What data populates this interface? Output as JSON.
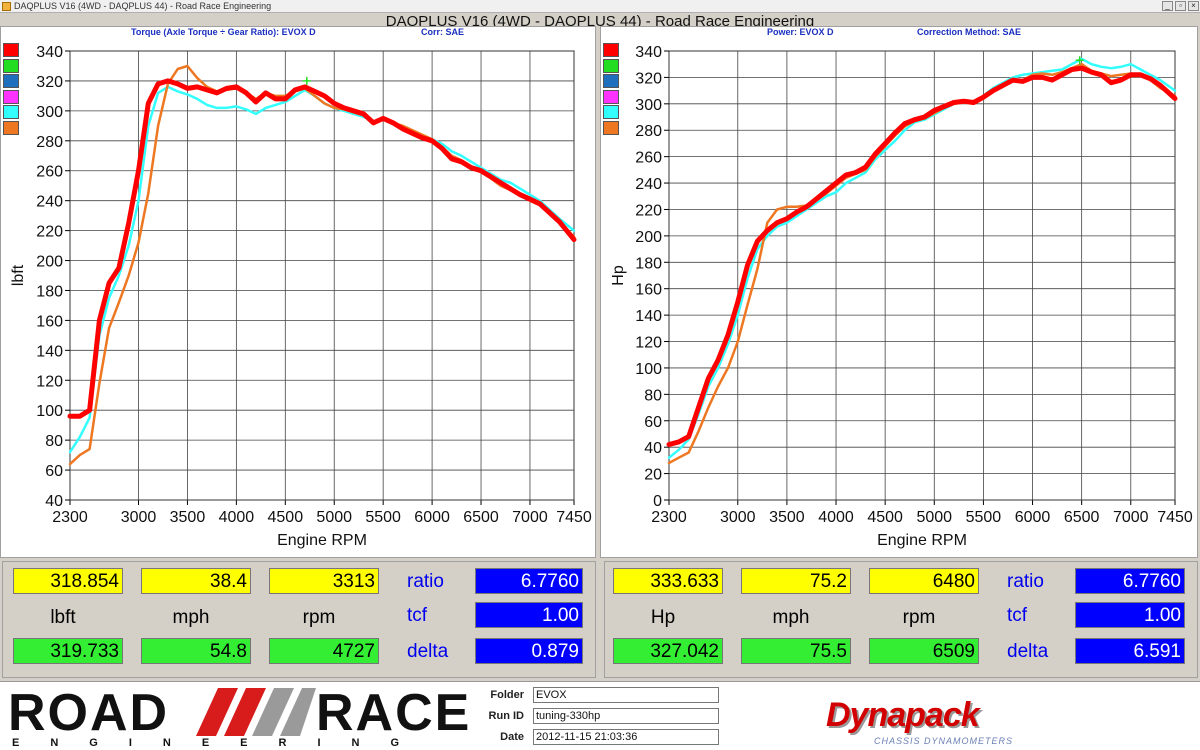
{
  "window": {
    "title": "DAQPLUS V16 (4WD - DAQPLUS 44) - Road Race Engineering",
    "main_title": "DAQPLUS V16 (4WD - DAQPLUS 44) - Road Race Engineering"
  },
  "left_panel": {
    "header": "Torque (Axle Torque ÷ Gear Ratio): EVOX D",
    "correction": "Corr: SAE"
  },
  "right_panel": {
    "header": "Power: EVOX D",
    "correction": "Correction Method: SAE"
  },
  "legend_colors": [
    "#ff0000",
    "#22dd22",
    "#1f6fbf",
    "#ff33ff",
    "#33ffff",
    "#ee7722"
  ],
  "chart_data": [
    {
      "type": "line",
      "title": "",
      "xlabel": "Engine RPM",
      "ylabel": "lbft",
      "xlim": [
        2300,
        7450
      ],
      "ylim": [
        40,
        340
      ],
      "x_ticks": [
        "2300",
        "3000",
        "3500",
        "4000",
        "4500",
        "5000",
        "5500",
        "6000",
        "6500",
        "7000",
        "7450"
      ],
      "y_ticks": [
        "40",
        "60",
        "80",
        "100",
        "120",
        "140",
        "160",
        "180",
        "200",
        "220",
        "240",
        "260",
        "280",
        "300",
        "320",
        "340"
      ],
      "grid": true,
      "series": [
        {
          "color": "#ff0000",
          "x": [
            2300,
            2400,
            2500,
            2600,
            2700,
            2800,
            2900,
            3000,
            3100,
            3200,
            3300,
            3400,
            3500,
            3600,
            3700,
            3800,
            3900,
            4000,
            4100,
            4200,
            4300,
            4400,
            4500,
            4600,
            4700,
            4800,
            4900,
            5000,
            5100,
            5200,
            5300,
            5400,
            5500,
            5600,
            5700,
            5800,
            5900,
            6000,
            6100,
            6200,
            6300,
            6400,
            6500,
            6600,
            6700,
            6800,
            6900,
            7000,
            7100,
            7200,
            7300,
            7450
          ],
          "y": [
            96,
            96,
            100,
            160,
            185,
            195,
            225,
            260,
            305,
            318,
            320,
            318,
            315,
            316,
            314,
            312,
            315,
            316,
            312,
            306,
            312,
            308,
            308,
            314,
            316,
            313,
            310,
            305,
            302,
            300,
            298,
            292,
            295,
            292,
            288,
            285,
            282,
            280,
            275,
            268,
            266,
            262,
            260,
            256,
            252,
            248,
            244,
            241,
            238,
            232,
            226,
            214
          ]
        },
        {
          "color": "#33ffff",
          "x": [
            2300,
            2400,
            2500,
            2600,
            2700,
            2800,
            2900,
            3000,
            3100,
            3200,
            3300,
            3400,
            3500,
            3600,
            3700,
            3800,
            3900,
            4000,
            4100,
            4200,
            4300,
            4400,
            4500,
            4600,
            4700,
            4800,
            4900,
            5000,
            5100,
            5200,
            5300,
            5400,
            5500,
            5600,
            5700,
            5800,
            5900,
            6000,
            6100,
            6200,
            6300,
            6400,
            6500,
            6600,
            6700,
            6800,
            6900,
            7000,
            7100,
            7200,
            7300,
            7450
          ],
          "y": [
            72,
            82,
            95,
            150,
            175,
            190,
            210,
            240,
            290,
            312,
            316,
            313,
            311,
            308,
            304,
            302,
            302,
            303,
            301,
            298,
            302,
            304,
            306,
            310,
            314,
            310,
            305,
            302,
            300,
            298,
            296,
            293,
            294,
            291,
            289,
            286,
            283,
            281,
            278,
            273,
            270,
            266,
            262,
            258,
            254,
            252,
            248,
            244,
            240,
            234,
            228,
            220
          ]
        },
        {
          "color": "#ee7722",
          "x": [
            2300,
            2400,
            2500,
            2600,
            2700,
            2800,
            2900,
            3000,
            3100,
            3200,
            3300,
            3400,
            3500,
            3600,
            3700,
            3800,
            3900,
            4000,
            4100,
            4200,
            4300,
            4400,
            4500,
            4600,
            4700,
            4800,
            4900,
            5000,
            5100,
            5200,
            5300,
            5400,
            5500,
            5600,
            5700,
            5800,
            5900,
            6000,
            6100,
            6200,
            6300,
            6400,
            6500,
            6600,
            6700,
            6800,
            6900,
            7000,
            7100,
            7200,
            7300,
            7450
          ],
          "y": [
            64,
            70,
            74,
            118,
            155,
            172,
            190,
            212,
            245,
            290,
            318,
            328,
            330,
            322,
            316,
            313,
            314,
            315,
            312,
            308,
            312,
            310,
            310,
            313,
            315,
            310,
            305,
            302,
            301,
            299,
            297,
            293,
            294,
            292,
            290,
            287,
            284,
            281,
            276,
            270,
            267,
            263,
            259,
            255,
            250,
            247,
            244,
            240,
            237,
            231,
            225,
            216
          ]
        },
        {
          "color": "#22dd22",
          "x": [
            4720
          ],
          "y": [
            320
          ]
        }
      ]
    },
    {
      "type": "line",
      "title": "",
      "xlabel": "Engine RPM",
      "ylabel": "Hp",
      "xlim": [
        2300,
        7450
      ],
      "ylim": [
        0,
        340
      ],
      "x_ticks": [
        "2300",
        "3000",
        "3500",
        "4000",
        "4500",
        "5000",
        "5500",
        "6000",
        "6500",
        "7000",
        "7450"
      ],
      "y_ticks": [
        "0",
        "20",
        "40",
        "60",
        "80",
        "100",
        "120",
        "140",
        "160",
        "180",
        "200",
        "220",
        "240",
        "260",
        "280",
        "300",
        "320",
        "340"
      ],
      "grid": true,
      "series": [
        {
          "color": "#ff0000",
          "x": [
            2300,
            2400,
            2500,
            2600,
            2700,
            2800,
            2900,
            3000,
            3100,
            3200,
            3300,
            3400,
            3500,
            3600,
            3700,
            3800,
            3900,
            4000,
            4100,
            4200,
            4300,
            4400,
            4500,
            4600,
            4700,
            4800,
            4900,
            5000,
            5100,
            5200,
            5300,
            5400,
            5500,
            5600,
            5700,
            5800,
            5900,
            6000,
            6100,
            6200,
            6300,
            6400,
            6500,
            6600,
            6700,
            6800,
            6900,
            7000,
            7100,
            7200,
            7300,
            7450
          ],
          "y": [
            42,
            44,
            48,
            70,
            92,
            106,
            125,
            150,
            178,
            196,
            204,
            210,
            213,
            218,
            222,
            228,
            234,
            240,
            246,
            248,
            252,
            262,
            270,
            278,
            285,
            288,
            290,
            295,
            298,
            301,
            302,
            301,
            305,
            310,
            314,
            318,
            317,
            320,
            320,
            318,
            322,
            326,
            327,
            324,
            322,
            316,
            318,
            322,
            322,
            319,
            314,
            304
          ]
        },
        {
          "color": "#33ffff",
          "x": [
            2300,
            2400,
            2500,
            2600,
            2700,
            2800,
            2900,
            3000,
            3100,
            3200,
            3300,
            3400,
            3500,
            3600,
            3700,
            3800,
            3900,
            4000,
            4100,
            4200,
            4300,
            4400,
            4500,
            4600,
            4700,
            4800,
            4900,
            5000,
            5100,
            5200,
            5300,
            5400,
            5500,
            5600,
            5700,
            5800,
            5900,
            6000,
            6100,
            6200,
            6300,
            6400,
            6500,
            6600,
            6700,
            6800,
            6900,
            7000,
            7100,
            7200,
            7300,
            7450
          ],
          "y": [
            32,
            38,
            46,
            65,
            86,
            100,
            118,
            140,
            168,
            190,
            200,
            207,
            210,
            215,
            220,
            225,
            230,
            233,
            240,
            244,
            248,
            258,
            265,
            272,
            280,
            286,
            288,
            292,
            296,
            300,
            302,
            300,
            306,
            312,
            316,
            320,
            322,
            323,
            324,
            325,
            326,
            330,
            334,
            330,
            328,
            327,
            328,
            330,
            326,
            322,
            318,
            310
          ]
        },
        {
          "color": "#ee7722",
          "x": [
            2300,
            2400,
            2500,
            2600,
            2700,
            2800,
            2900,
            3000,
            3100,
            3200,
            3300,
            3400,
            3500,
            3600,
            3700,
            3800,
            3900,
            4000,
            4100,
            4200,
            4300,
            4400,
            4500,
            4600,
            4700,
            4800,
            4900,
            5000,
            5100,
            5200,
            5300,
            5400,
            5500,
            5600,
            5700,
            5800,
            5900,
            6000,
            6100,
            6200,
            6300,
            6400,
            6500,
            6600,
            6700,
            6800,
            6900,
            7000,
            7100,
            7200,
            7300,
            7450
          ],
          "y": [
            28,
            32,
            36,
            52,
            70,
            86,
            100,
            120,
            148,
            175,
            210,
            220,
            222,
            222,
            223,
            227,
            232,
            238,
            244,
            247,
            250,
            260,
            268,
            276,
            283,
            287,
            289,
            293,
            297,
            300,
            301,
            300,
            304,
            310,
            314,
            318,
            318,
            322,
            323,
            322,
            324,
            327,
            330,
            325,
            323,
            321,
            322,
            323,
            321,
            318,
            312,
            306
          ]
        },
        {
          "color": "#22dd22",
          "x": [
            6480
          ],
          "y": [
            333
          ]
        }
      ]
    }
  ],
  "readouts_left": {
    "top": [
      "318.854",
      "38.4",
      "3313"
    ],
    "units": [
      "lbft",
      "mph",
      "rpm"
    ],
    "bottom": [
      "319.733",
      "54.8",
      "4727"
    ],
    "side_labels": [
      "ratio",
      "tcf",
      "delta"
    ],
    "side_values": [
      "6.7760",
      "1.00",
      "0.879"
    ]
  },
  "readouts_right": {
    "top": [
      "333.633",
      "75.2",
      "6480"
    ],
    "units": [
      "Hp",
      "mph",
      "rpm"
    ],
    "bottom": [
      "327.042",
      "75.5",
      "6509"
    ],
    "side_labels": [
      "ratio",
      "tcf",
      "delta"
    ],
    "side_values": [
      "6.7760",
      "1.00",
      "6.591"
    ]
  },
  "footer": {
    "logo_road": "ROAD",
    "logo_race": "RACE",
    "logo_sub": "ENGINEERING",
    "folder_label": "Folder",
    "folder_value": "EVOX",
    "runid_label": "Run ID",
    "runid_value": "tuning-330hp",
    "date_label": "Date",
    "date_value": "2012-11-15 21:03:36",
    "dyna_logo": "Dynapack",
    "dyna_sub": "CHASSIS DYNAMOMETERS"
  }
}
